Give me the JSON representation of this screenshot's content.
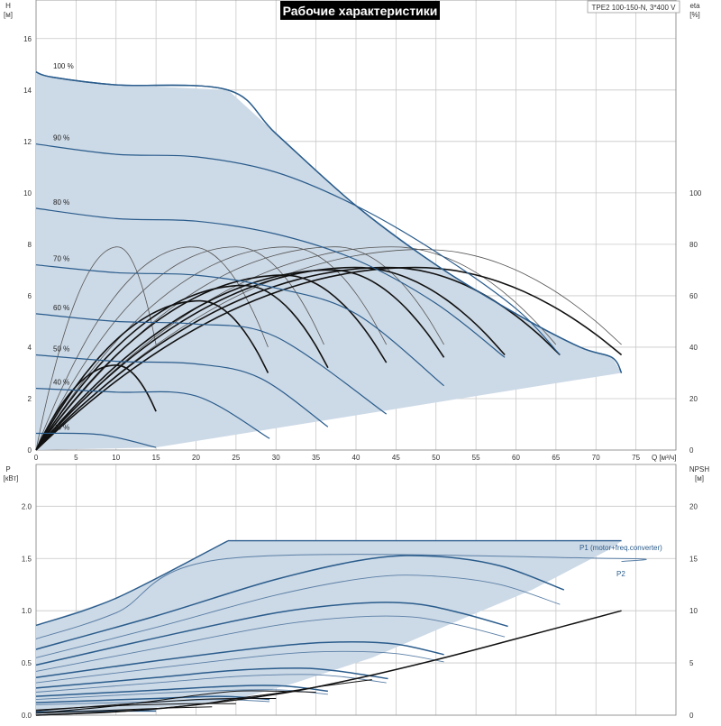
{
  "header": {
    "title": "Рабочие характеристики",
    "model": "TPE2 100-150-N, 3*400 V"
  },
  "colors": {
    "envelope_fill": "#ccd9e6",
    "envelope_edge": "#2a5c8c",
    "curve_blue": "#2a5c8c",
    "curve_black": "#111111",
    "grid": "#c8c8c8",
    "title_bg": "#000000",
    "title_fg": "#ffffff"
  },
  "chart_data": [
    {
      "type": "line",
      "id": "performance",
      "left_axis": {
        "label_line1": "H",
        "label_line2": "[м]",
        "range": [
          0,
          17.5
        ],
        "ticks": [
          0,
          2,
          4,
          6,
          8,
          10,
          12,
          14,
          16
        ]
      },
      "right_axis": {
        "label_line1": "eta",
        "label_line2": "[%]",
        "range": [
          0,
          175
        ],
        "ticks": [
          0,
          20,
          40,
          60,
          80,
          100
        ]
      },
      "x_axis": {
        "label": "Q [м³/ч]",
        "range": [
          0,
          80
        ],
        "ticks": [
          0,
          5,
          10,
          15,
          20,
          25,
          30,
          35,
          40,
          45,
          50,
          55,
          60,
          65,
          70,
          75
        ]
      },
      "envelope": [
        [
          0,
          14.7
        ],
        [
          2,
          14.5
        ],
        [
          10,
          14.2
        ],
        [
          24,
          14.0
        ],
        [
          30,
          12.3
        ],
        [
          40,
          9.5
        ],
        [
          50,
          7.2
        ],
        [
          60,
          5.3
        ],
        [
          68,
          4.0
        ],
        [
          72,
          3.6
        ],
        [
          73.2,
          3.0
        ],
        [
          65,
          2.6
        ],
        [
          55,
          2.1
        ],
        [
          45,
          1.6
        ],
        [
          35,
          1.1
        ],
        [
          25,
          0.6
        ],
        [
          15,
          0.1
        ],
        [
          0,
          0
        ]
      ],
      "speed_curves": [
        {
          "label": "100 %",
          "points": [
            [
              0,
              14.7
            ],
            [
              2,
              14.5
            ],
            [
              10,
              14.2
            ],
            [
              24,
              14.0
            ],
            [
              30,
              12.3
            ],
            [
              40,
              9.5
            ],
            [
              50,
              7.2
            ],
            [
              60,
              5.3
            ],
            [
              68,
              4.0
            ],
            [
              72,
              3.6
            ],
            [
              73.2,
              3.0
            ]
          ]
        },
        {
          "label": "90 %",
          "points": [
            [
              0,
              11.9
            ],
            [
              10,
              11.5
            ],
            [
              20,
              11.4
            ],
            [
              30,
              10.8
            ],
            [
              40,
              9.5
            ],
            [
              50,
              7.7
            ],
            [
              60,
              5.5
            ],
            [
              65.5,
              3.7
            ]
          ]
        },
        {
          "label": "80 %",
          "points": [
            [
              0,
              9.4
            ],
            [
              10,
              9.0
            ],
            [
              20,
              8.9
            ],
            [
              30,
              8.4
            ],
            [
              40,
              7.4
            ],
            [
              50,
              5.7
            ],
            [
              58.6,
              3.6
            ]
          ]
        },
        {
          "label": "70 %",
          "points": [
            [
              0,
              7.2
            ],
            [
              10,
              6.9
            ],
            [
              20,
              6.8
            ],
            [
              30,
              6.3
            ],
            [
              40,
              5.3
            ],
            [
              51,
              2.5
            ]
          ]
        },
        {
          "label": "60 %",
          "points": [
            [
              0,
              5.3
            ],
            [
              10,
              5.0
            ],
            [
              20,
              4.9
            ],
            [
              30,
              4.4
            ],
            [
              43.8,
              1.4
            ]
          ]
        },
        {
          "label": "50 %",
          "points": [
            [
              0,
              3.7
            ],
            [
              10,
              3.45
            ],
            [
              20,
              3.35
            ],
            [
              28,
              2.8
            ],
            [
              36.5,
              0.9
            ]
          ]
        },
        {
          "label": "40 %",
          "points": [
            [
              0,
              2.4
            ],
            [
              10,
              2.25
            ],
            [
              20,
              2.1
            ],
            [
              29.2,
              0.45
            ]
          ]
        },
        {
          "label": "25 %",
          "points": [
            [
              0,
              0.65
            ],
            [
              8,
              0.6
            ],
            [
              15,
              0.1
            ]
          ]
        }
      ],
      "eta_curves": [
        {
          "peak_q": 10.2,
          "peak": 79,
          "end_q": 15.0,
          "end": 41,
          "weight": "thin"
        },
        {
          "peak_q": 19.5,
          "peak": 79,
          "end_q": 29.0,
          "end": 40,
          "weight": "thin"
        },
        {
          "peak_q": 25.0,
          "peak": 79,
          "end_q": 36.0,
          "end": 41,
          "weight": "thin"
        },
        {
          "peak_q": 31.5,
          "peak": 79,
          "end_q": 43.8,
          "end": 41,
          "weight": "thin"
        },
        {
          "peak_q": 37.5,
          "peak": 79,
          "end_q": 51.0,
          "end": 41,
          "weight": "thin"
        },
        {
          "peak_q": 44.5,
          "peak": 79,
          "end_q": 65.0,
          "end": 41,
          "weight": "thin"
        },
        {
          "peak_q": 48.5,
          "peak": 78,
          "end_q": 73.2,
          "end": 41,
          "weight": "thin"
        },
        {
          "peak_q": 10.0,
          "peak": 33,
          "end_q": 15.0,
          "end": 15,
          "weight": "thick"
        },
        {
          "peak_q": 20.5,
          "peak": 58,
          "end_q": 29.0,
          "end": 30,
          "weight": "thick"
        },
        {
          "peak_q": 26.0,
          "peak": 64,
          "end_q": 36.5,
          "end": 32,
          "weight": "thick"
        },
        {
          "peak_q": 31.0,
          "peak": 68,
          "end_q": 43.8,
          "end": 34,
          "weight": "thick"
        },
        {
          "peak_q": 37.0,
          "peak": 70,
          "end_q": 51.0,
          "end": 36,
          "weight": "thick"
        },
        {
          "peak_q": 40.0,
          "peak": 71,
          "end_q": 58.6,
          "end": 37,
          "weight": "thick"
        },
        {
          "peak_q": 44.0,
          "peak": 71,
          "end_q": 65.5,
          "end": 37,
          "weight": "thick"
        },
        {
          "peak_q": 47.5,
          "peak": 71,
          "end_q": 73.2,
          "end": 37,
          "weight": "thick"
        }
      ]
    },
    {
      "type": "line",
      "id": "power",
      "left_axis": {
        "label_line1": "P",
        "label_line2": "[кВт]",
        "range": [
          0,
          2.4
        ],
        "ticks": [
          0,
          0.5,
          1.0,
          1.5,
          2.0
        ],
        "tick_labels": [
          "0.0",
          "0.5",
          "1.0",
          "1.5",
          "2.0"
        ]
      },
      "right_axis": {
        "label_line1": "NPSH",
        "label_line2": "[м]",
        "range": [
          0,
          24
        ],
        "ticks": [
          0,
          5,
          10,
          15,
          20
        ]
      },
      "envelope_p1": [
        [
          0,
          0.86
        ],
        [
          10,
          1.12
        ],
        [
          24,
          1.67
        ],
        [
          73.2,
          1.67
        ],
        [
          72,
          1.6
        ],
        [
          62,
          1.2
        ],
        [
          52,
          0.88
        ],
        [
          42,
          0.55
        ],
        [
          32,
          0.3
        ],
        [
          24,
          0.13
        ],
        [
          10,
          0.04
        ],
        [
          0,
          0.0
        ]
      ],
      "p1_label": "P1 (motor+freq.converter)",
      "p2_label": "P2",
      "p1_max_line": [
        [
          24,
          1.67
        ],
        [
          73.2,
          1.67
        ]
      ],
      "p2_max_line": [
        [
          0,
          0.73
        ],
        [
          10,
          0.98
        ],
        [
          24,
          1.5
        ],
        [
          72.5,
          1.5
        ],
        [
          73.2,
          1.47
        ]
      ],
      "power_curves_blue": [
        [
          [
            0,
            0.63
          ],
          [
            15,
            0.95
          ],
          [
            30,
            1.3
          ],
          [
            42,
            1.5
          ],
          [
            50,
            1.52
          ],
          [
            58,
            1.43
          ],
          [
            66,
            1.2
          ]
        ],
        [
          [
            0,
            0.48
          ],
          [
            15,
            0.74
          ],
          [
            30,
            0.98
          ],
          [
            40,
            1.07
          ],
          [
            47,
            1.07
          ],
          [
            53,
            0.98
          ],
          [
            59,
            0.85
          ]
        ],
        [
          [
            0,
            0.36
          ],
          [
            15,
            0.52
          ],
          [
            30,
            0.66
          ],
          [
            38,
            0.7
          ],
          [
            45,
            0.68
          ],
          [
            51,
            0.58
          ]
        ],
        [
          [
            0,
            0.26
          ],
          [
            15,
            0.36
          ],
          [
            25,
            0.43
          ],
          [
            33,
            0.45
          ],
          [
            38,
            0.42
          ],
          [
            44,
            0.35
          ]
        ],
        [
          [
            0,
            0.18
          ],
          [
            15,
            0.24
          ],
          [
            25,
            0.28
          ],
          [
            31,
            0.28
          ],
          [
            36.5,
            0.23
          ]
        ],
        [
          [
            0,
            0.12
          ],
          [
            15,
            0.16
          ],
          [
            23,
            0.18
          ],
          [
            29.2,
            0.15
          ]
        ],
        [
          [
            0,
            0.03
          ],
          [
            8,
            0.04
          ],
          [
            15,
            0.04
          ]
        ]
      ],
      "power_curves_thin": [
        [
          [
            0,
            0.55
          ],
          [
            15,
            0.84
          ],
          [
            30,
            1.15
          ],
          [
            42,
            1.32
          ],
          [
            50,
            1.33
          ],
          [
            58,
            1.25
          ],
          [
            65.5,
            1.06
          ]
        ],
        [
          [
            0,
            0.42
          ],
          [
            15,
            0.64
          ],
          [
            30,
            0.86
          ],
          [
            40,
            0.94
          ],
          [
            47,
            0.94
          ],
          [
            53,
            0.86
          ],
          [
            58.6,
            0.75
          ]
        ],
        [
          [
            0,
            0.31
          ],
          [
            15,
            0.45
          ],
          [
            30,
            0.58
          ],
          [
            38,
            0.61
          ],
          [
            45,
            0.59
          ],
          [
            51,
            0.51
          ]
        ],
        [
          [
            0,
            0.22
          ],
          [
            15,
            0.31
          ],
          [
            25,
            0.37
          ],
          [
            33,
            0.39
          ],
          [
            38,
            0.37
          ],
          [
            43.8,
            0.31
          ]
        ],
        [
          [
            0,
            0.15
          ],
          [
            15,
            0.21
          ],
          [
            25,
            0.24
          ],
          [
            31,
            0.24
          ],
          [
            36.5,
            0.2
          ]
        ],
        [
          [
            0,
            0.1
          ],
          [
            15,
            0.13
          ],
          [
            23,
            0.15
          ],
          [
            29.2,
            0.13
          ]
        ]
      ],
      "npsh_curve": [
        [
          0,
          0.0
        ],
        [
          15,
          0.6
        ],
        [
          30,
          2.0
        ],
        [
          40,
          3.5
        ],
        [
          50,
          5.3
        ],
        [
          60,
          7.3
        ],
        [
          73.2,
          10.0
        ]
      ],
      "npsh_low_curves": [
        [
          [
            0,
            0.0
          ],
          [
            10,
            0.3
          ],
          [
            20,
            1.0
          ],
          [
            25,
            1.6
          ],
          [
            30,
            2.1
          ],
          [
            36,
            2.8
          ],
          [
            42,
            3.4
          ]
        ],
        [
          [
            0,
            0.2
          ],
          [
            10,
            0.9
          ],
          [
            20,
            1.9
          ],
          [
            25,
            2.3
          ],
          [
            30,
            2.3
          ],
          [
            35,
            2.2
          ]
        ],
        [
          [
            0,
            0.4
          ],
          [
            10,
            1.0
          ],
          [
            20,
            1.5
          ],
          [
            25,
            1.6
          ],
          [
            30,
            1.6
          ]
        ],
        [
          [
            0,
            0.5
          ],
          [
            10,
            0.9
          ],
          [
            20,
            1.1
          ],
          [
            25,
            1.1
          ]
        ],
        [
          [
            0,
            0.2
          ],
          [
            10,
            0.5
          ],
          [
            17,
            0.7
          ],
          [
            22,
            0.8
          ]
        ]
      ]
    }
  ]
}
